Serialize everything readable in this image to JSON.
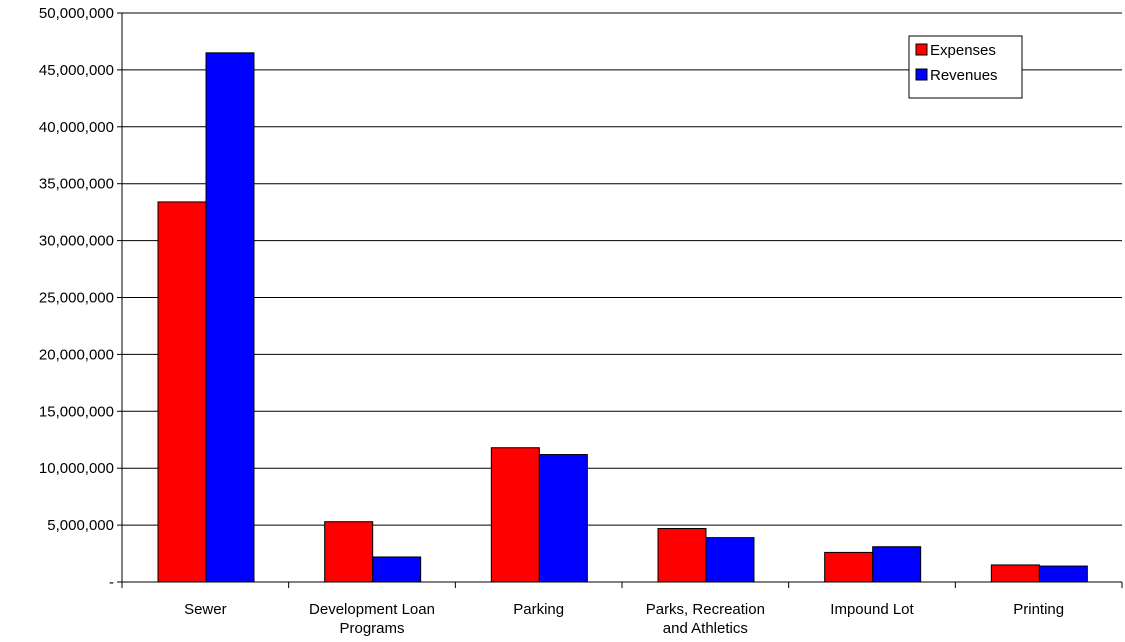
{
  "chart_data": {
    "type": "bar",
    "categories": [
      [
        "Sewer"
      ],
      [
        "Development Loan",
        "Programs"
      ],
      [
        "Parking"
      ],
      [
        "Parks, Recreation",
        "and Athletics"
      ],
      [
        "Impound Lot"
      ],
      [
        "Printing"
      ]
    ],
    "series": [
      {
        "name": "Expenses",
        "color": "#ff0000",
        "values": [
          33400000,
          5300000,
          11800000,
          4700000,
          2600000,
          1500000
        ]
      },
      {
        "name": "Revenues",
        "color": "#0000ff",
        "values": [
          46500000,
          2200000,
          11200000,
          3900000,
          3100000,
          1400000
        ]
      }
    ],
    "ylim": [
      0,
      50000000
    ],
    "yticks": [
      {
        "value": 0,
        "label": "-"
      },
      {
        "value": 5000000,
        "label": "5,000,000"
      },
      {
        "value": 10000000,
        "label": "10,000,000"
      },
      {
        "value": 15000000,
        "label": "15,000,000"
      },
      {
        "value": 20000000,
        "label": "20,000,000"
      },
      {
        "value": 25000000,
        "label": "25,000,000"
      },
      {
        "value": 30000000,
        "label": "30,000,000"
      },
      {
        "value": 35000000,
        "label": "35,000,000"
      },
      {
        "value": 40000000,
        "label": "40,000,000"
      },
      {
        "value": 45000000,
        "label": "45,000,000"
      },
      {
        "value": 50000000,
        "label": "50,000,000"
      }
    ],
    "grid": true,
    "legend_position": "top-right"
  }
}
